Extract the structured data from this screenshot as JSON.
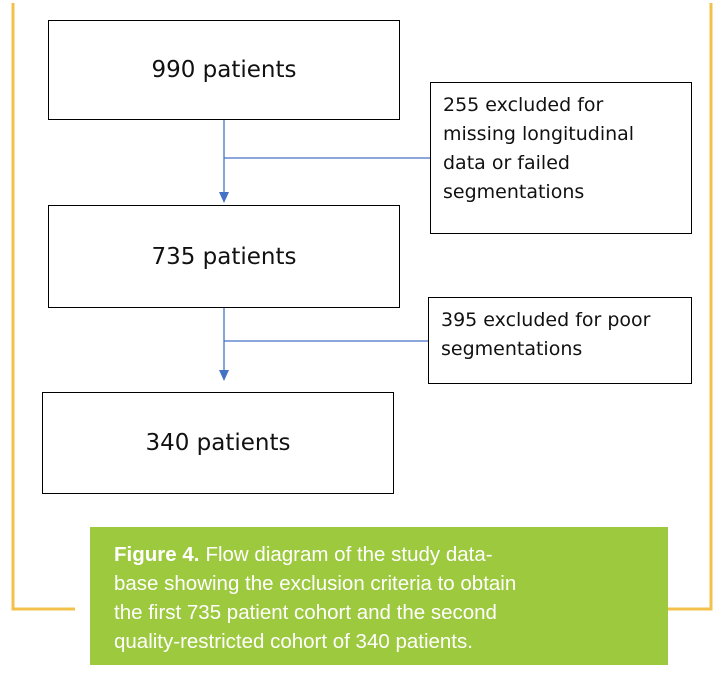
{
  "nodes": [
    {
      "label": "990 patients"
    },
    {
      "label": "735 patients"
    },
    {
      "label": "340 patients"
    }
  ],
  "exclusions": [
    {
      "lines": [
        "255 excluded for",
        "missing longitudinal",
        "data or failed",
        "segmentations"
      ]
    },
    {
      "lines": [
        "395 excluded for poor",
        "segmentations"
      ]
    }
  ],
  "caption": {
    "label": "Figure 4.",
    "lines": [
      "Flow diagram of the study data-",
      "base showing the exclusion criteria to obtain",
      "the first 735 patient cohort and the second",
      "quality-restricted cohort of 340 patients."
    ]
  }
}
